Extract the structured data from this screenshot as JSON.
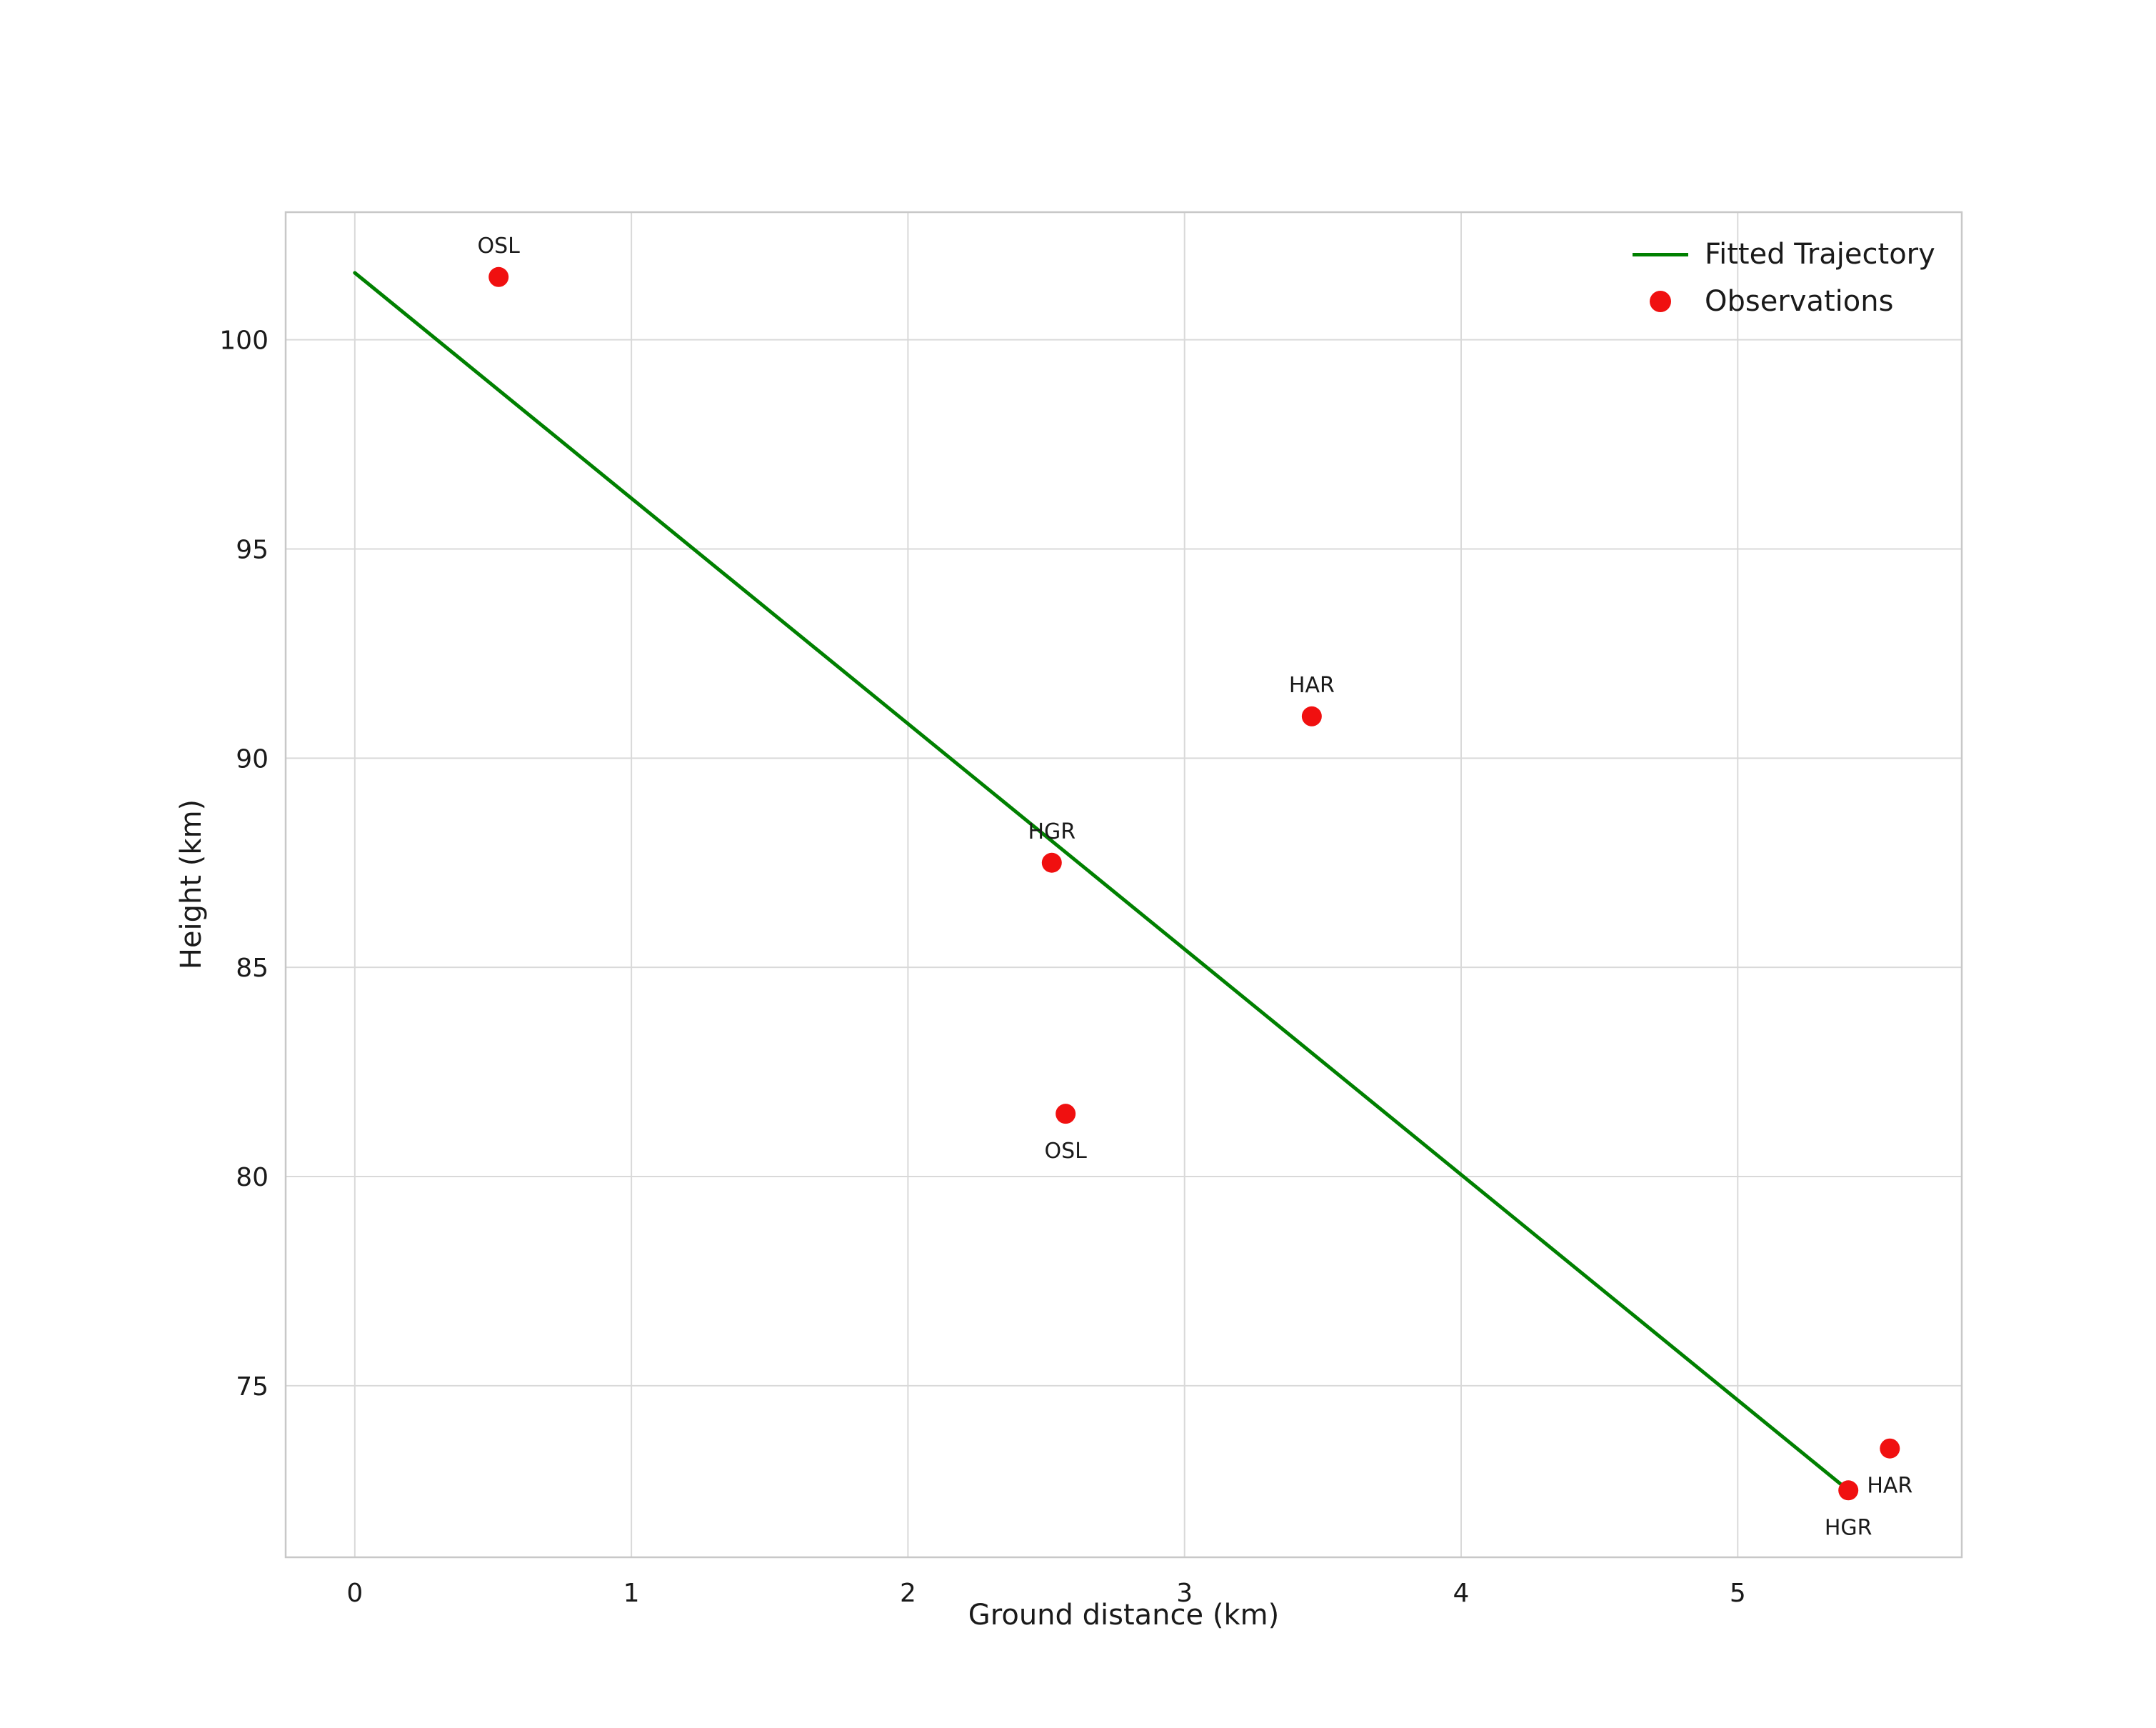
{
  "chart_data": {
    "type": "scatter",
    "title": "",
    "xlabel": "Ground distance (km)",
    "ylabel": "Height (km)",
    "xlim": [
      -0.25,
      5.81
    ],
    "ylim": [
      70.9,
      103.05
    ],
    "xticks": [
      0,
      1,
      2,
      3,
      4,
      5
    ],
    "yticks": [
      75,
      80,
      85,
      90,
      95,
      100
    ],
    "grid": true,
    "legend_position": "upper right",
    "series": [
      {
        "name": "Fitted Trajectory",
        "type": "line",
        "color": "#008000",
        "points": [
          [
            0.0,
            101.6
          ],
          [
            5.4,
            72.5
          ]
        ]
      },
      {
        "name": "Observations",
        "type": "scatter",
        "color": "#f01010",
        "points": [
          {
            "x": 0.52,
            "y": 101.5,
            "label": "OSL",
            "label_placement": "above"
          },
          {
            "x": 3.46,
            "y": 91.0,
            "label": "HAR",
            "label_placement": "above"
          },
          {
            "x": 2.52,
            "y": 87.5,
            "label": "HGR",
            "label_placement": "above"
          },
          {
            "x": 2.57,
            "y": 81.5,
            "label": "OSL",
            "label_placement": "below"
          },
          {
            "x": 5.55,
            "y": 73.5,
            "label": "HAR",
            "label_placement": "below"
          },
          {
            "x": 5.4,
            "y": 72.5,
            "label": "HGR",
            "label_placement": "below"
          }
        ]
      }
    ],
    "legend": [
      {
        "label": "Fitted Trajectory",
        "marker": "line",
        "color": "#008000"
      },
      {
        "label": "Observations",
        "marker": "dot",
        "color": "#f01010"
      }
    ],
    "colors": {
      "grid": "#d9d9d9",
      "frame": "#c8c8c8",
      "text": "#1a1a1a"
    }
  }
}
